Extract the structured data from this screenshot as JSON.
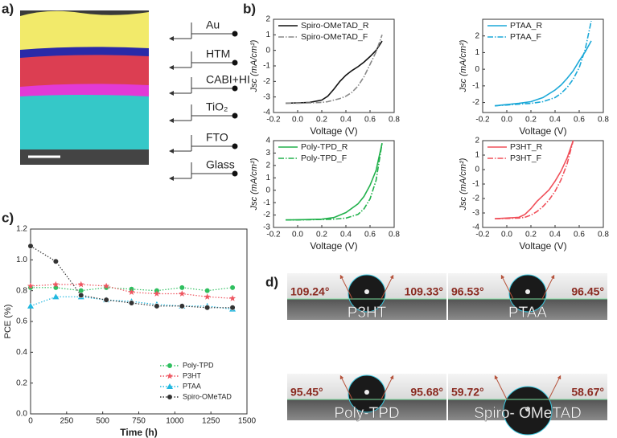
{
  "panel_labels": [
    "a)",
    "b)",
    "c)",
    "d)"
  ],
  "panel_a": {
    "labels": [
      "Au",
      "HTM",
      "CABI+HI",
      "TiO₂",
      "FTO",
      "Glass"
    ]
  },
  "panel_d": {
    "photos": [
      {
        "name": "P3HT",
        "left_angle": "109.24°",
        "right_angle": "109.33°"
      },
      {
        "name": "PTAA",
        "left_angle": "96.53°",
        "right_angle": "96.45°"
      },
      {
        "name": "Poly-TPD",
        "left_angle": "95.45°",
        "right_angle": "95.68°"
      },
      {
        "name": "Spiro- OMeTAD",
        "left_angle": "59.72°",
        "right_angle": "58.67°"
      }
    ]
  },
  "chart_data": [
    {
      "type": "line",
      "xlabel": "Voltage (V)",
      "ylabel": "Jsc (mA/cm²)",
      "legend": "upper left",
      "xlim": [
        -0.2,
        0.8
      ],
      "xticks": [
        -0.2,
        {
          "value": 0,
          "label": "0.0"
        },
        0.2,
        0.4,
        0.6,
        0.8
      ],
      "ylim": [
        -4,
        2
      ],
      "yticks": [
        -4,
        -3,
        -2,
        -1,
        0,
        1,
        2
      ],
      "x": [
        -0.1,
        0,
        0.1,
        0.2,
        0.25,
        0.3,
        0.35,
        0.4,
        0.45,
        0.5,
        0.55,
        0.6,
        0.65,
        0.7
      ],
      "series": [
        {
          "name": "Spiro-OMeTAD_R",
          "color": "#111111",
          "dash": "solid",
          "values": [
            -3.4,
            -3.38,
            -3.35,
            -3.2,
            -2.95,
            -2.5,
            -2.0,
            -1.6,
            -1.3,
            -1.05,
            -0.75,
            -0.4,
            0.0,
            0.6
          ]
        },
        {
          "name": "Spiro-OMeTAD_F",
          "color": "#888888",
          "dash": "dashdot",
          "values": [
            -3.4,
            -3.4,
            -3.38,
            -3.35,
            -3.3,
            -3.2,
            -3.1,
            -2.95,
            -2.7,
            -2.3,
            -1.7,
            -0.9,
            -0.1,
            1.0
          ]
        }
      ]
    },
    {
      "type": "line",
      "xlabel": "Voltage (V)",
      "ylabel": "Jsc (mA/cm²)",
      "legend": "upper left",
      "xlim": [
        -0.2,
        0.8
      ],
      "xticks": [
        -0.2,
        {
          "value": 0,
          "label": "0.0"
        },
        0.2,
        0.4,
        0.6,
        0.8
      ],
      "ylim": [
        -2.6,
        3
      ],
      "yticks": [
        -2,
        -1,
        0,
        1,
        2
      ],
      "x": [
        -0.1,
        0,
        0.1,
        0.2,
        0.3,
        0.4,
        0.45,
        0.5,
        0.55,
        0.6,
        0.65,
        0.7
      ],
      "series": [
        {
          "name": "PTAA_R",
          "color": "#1ba8d8",
          "dash": "solid",
          "values": [
            -2.2,
            -2.12,
            -2.05,
            -1.95,
            -1.7,
            -1.25,
            -0.95,
            -0.55,
            -0.1,
            0.5,
            1.05,
            1.7
          ]
        },
        {
          "name": "PTAA_F",
          "color": "#1ba8d8",
          "dash": "dashdot",
          "values": [
            -2.2,
            -2.15,
            -2.1,
            -2.05,
            -1.95,
            -1.7,
            -1.45,
            -1.1,
            -0.6,
            0.1,
            1.2,
            2.9
          ]
        }
      ]
    },
    {
      "type": "line",
      "xlabel": "Voltage (V)",
      "ylabel": "Jsc (mA/cm²)",
      "legend": "upper left",
      "xlim": [
        -0.2,
        0.8
      ],
      "xticks": [
        -0.2,
        {
          "value": 0,
          "label": "0.0"
        },
        0.2,
        0.4,
        0.6,
        0.8
      ],
      "ylim": [
        -3,
        4
      ],
      "yticks": [
        -3,
        -2,
        -1,
        0,
        1,
        2,
        3,
        4
      ],
      "x": [
        -0.1,
        0,
        0.1,
        0.2,
        0.3,
        0.4,
        0.5,
        0.55,
        0.6,
        0.65,
        0.7
      ],
      "series": [
        {
          "name": "Poly-TPD_R",
          "color": "#22b14c",
          "dash": "solid",
          "values": [
            -2.4,
            -2.38,
            -2.36,
            -2.33,
            -2.2,
            -1.8,
            -1.1,
            -0.5,
            0.4,
            1.6,
            3.8
          ]
        },
        {
          "name": "Poly-TPD_F",
          "color": "#22b14c",
          "dash": "dashdot",
          "values": [
            -2.4,
            -2.4,
            -2.38,
            -2.36,
            -2.33,
            -2.25,
            -1.95,
            -1.5,
            -0.7,
            0.8,
            3.8
          ]
        }
      ]
    },
    {
      "type": "line",
      "xlabel": "Voltage (V)",
      "ylabel": "Jsc (mA/cm²)",
      "legend": "upper left",
      "xlim": [
        -0.2,
        0.8
      ],
      "xticks": [
        -0.2,
        {
          "value": 0,
          "label": "0.0"
        },
        0.2,
        0.4,
        0.6,
        0.8
      ],
      "ylim": [
        -4,
        2
      ],
      "yticks": [
        -4,
        -3,
        -2,
        -1,
        0,
        1,
        2
      ],
      "x": [
        -0.1,
        0,
        0.1,
        0.15,
        0.2,
        0.25,
        0.3,
        0.35,
        0.4,
        0.45,
        0.5,
        0.55
      ],
      "series": [
        {
          "name": "P3HT_R",
          "color": "#f0505a",
          "dash": "solid",
          "values": [
            -3.4,
            -3.35,
            -3.3,
            -3.1,
            -2.7,
            -2.2,
            -1.8,
            -1.4,
            -0.8,
            -0.1,
            0.8,
            2.0
          ]
        },
        {
          "name": "P3HT_F",
          "color": "#f0505a",
          "dash": "dashdot",
          "values": [
            -3.4,
            -3.38,
            -3.35,
            -3.3,
            -3.15,
            -2.9,
            -2.55,
            -2.1,
            -1.5,
            -0.7,
            0.4,
            2.0
          ]
        }
      ]
    },
    {
      "type": "line",
      "xlabel": "Time (h)",
      "ylabel": "PCE (%)",
      "legend": "lower right",
      "xlim": [
        0,
        1500
      ],
      "xticks": [
        0,
        250,
        500,
        750,
        1000,
        1250,
        1500
      ],
      "ylim": [
        0,
        1.2
      ],
      "yticks": [
        {
          "value": 0,
          "label": "0.0"
        },
        0.2,
        0.4,
        0.6,
        0.8,
        {
          "value": 1,
          "label": "1.0"
        },
        1.2
      ],
      "x": [
        0,
        175,
        350,
        525,
        700,
        875,
        1050,
        1225,
        1400
      ],
      "series": [
        {
          "name": "Poly-TPD",
          "color": "#2fbf5f",
          "dash": "dotted",
          "marker": "circle",
          "values": [
            0.82,
            0.82,
            0.8,
            0.82,
            0.81,
            0.8,
            0.82,
            0.8,
            0.82
          ]
        },
        {
          "name": "P3HT",
          "color": "#ee5560",
          "dash": "dotted",
          "marker": "star",
          "values": [
            0.83,
            0.84,
            0.84,
            0.83,
            0.79,
            0.78,
            0.78,
            0.76,
            0.75
          ]
        },
        {
          "name": "PTAA",
          "color": "#22b8e0",
          "dash": "dotted",
          "marker": "triangle",
          "values": [
            0.7,
            0.76,
            0.76,
            0.74,
            0.73,
            0.71,
            0.7,
            0.7,
            0.68
          ]
        },
        {
          "name": "Spiro-OMeTAD",
          "color": "#333333",
          "dash": "dotted",
          "marker": "circle",
          "values": [
            1.09,
            0.99,
            0.77,
            0.74,
            0.72,
            0.7,
            0.7,
            0.69,
            0.69
          ]
        }
      ]
    }
  ]
}
